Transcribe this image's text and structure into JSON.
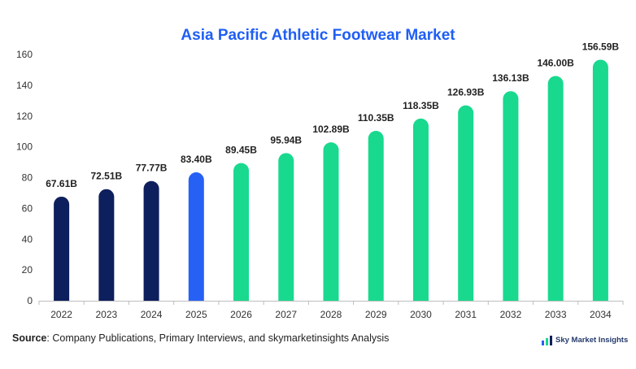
{
  "chart_data": {
    "type": "bar",
    "title": "Asia Pacific Athletic Footwear Market",
    "categories": [
      "2022",
      "2023",
      "2024",
      "2025",
      "2026",
      "2027",
      "2028",
      "2029",
      "2030",
      "2031",
      "2032",
      "2033",
      "2034"
    ],
    "values": [
      67.61,
      72.51,
      77.77,
      83.4,
      89.45,
      95.94,
      102.89,
      110.35,
      118.35,
      126.93,
      136.13,
      146.0,
      156.59
    ],
    "data_labels": [
      "67.61B",
      "72.51B",
      "77.77B",
      "83.40B",
      "89.45B",
      "95.94B",
      "102.89B",
      "110.35B",
      "118.35B",
      "126.93B",
      "136.13B",
      "146.00B",
      "156.59B"
    ],
    "bar_colors": [
      "#0d1f5c",
      "#0d1f5c",
      "#0d1f5c",
      "#2760f5",
      "#19d98e",
      "#19d98e",
      "#19d98e",
      "#19d98e",
      "#19d98e",
      "#19d98e",
      "#19d98e",
      "#19d98e",
      "#19d98e"
    ],
    "y_ticks": [
      0,
      20,
      40,
      60,
      80,
      100,
      120,
      140,
      160
    ],
    "ylim": [
      0,
      160
    ],
    "xlabel": "",
    "ylabel": "",
    "grid": false,
    "legend": "none"
  },
  "source": {
    "label": "Source",
    "text": ": Company Publications, Primary Interviews, and skymarketinsights Analysis"
  },
  "brand": {
    "name": "Sky Market Insights",
    "icon": "bar-chart-logo-icon"
  }
}
